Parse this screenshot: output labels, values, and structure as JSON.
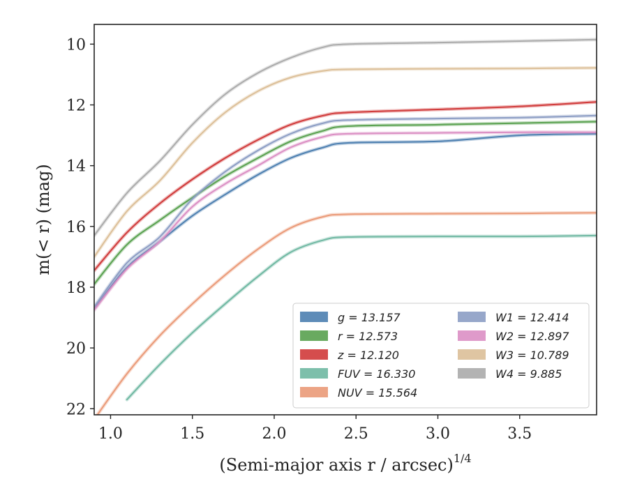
{
  "chart_data": {
    "type": "line",
    "xlabel": "(Semi-major axis r / arcsec)",
    "xlabel_sup": "1/4",
    "ylabel": "m(< r) (mag)",
    "xlim": [
      0.9,
      3.97
    ],
    "ylim": [
      22.2,
      9.35
    ],
    "y_inverted": true,
    "x_ticks": [
      1.0,
      1.5,
      2.0,
      2.5,
      3.0,
      3.5
    ],
    "x_tick_labels": [
      "1.0",
      "1.5",
      "2.0",
      "2.5",
      "3.0",
      "3.5"
    ],
    "y_ticks": [
      10,
      12,
      14,
      16,
      18,
      20,
      22
    ],
    "y_tick_labels": [
      "10",
      "12",
      "14",
      "16",
      "18",
      "20",
      "22"
    ],
    "legend": {
      "placement": "lower-right",
      "columns": 2
    },
    "series": [
      {
        "name": "g = 13.157",
        "color": "#4c7fb0",
        "x": [
          0.9,
          1.1,
          1.3,
          1.5,
          1.7,
          1.9,
          2.1,
          2.3,
          2.45,
          3.0,
          3.5,
          3.97
        ],
        "y": [
          18.7,
          17.35,
          16.5,
          15.65,
          14.95,
          14.3,
          13.75,
          13.4,
          13.25,
          13.2,
          13.0,
          12.95
        ]
      },
      {
        "name": "r = 12.573",
        "color": "#59a14f",
        "x": [
          0.9,
          1.1,
          1.3,
          1.5,
          1.7,
          1.9,
          2.1,
          2.3,
          2.45,
          3.0,
          3.5,
          3.97
        ],
        "y": [
          17.9,
          16.6,
          15.8,
          15.05,
          14.35,
          13.75,
          13.2,
          12.85,
          12.7,
          12.65,
          12.6,
          12.55
        ]
      },
      {
        "name": "z = 12.120",
        "color": "#d03a3a",
        "x": [
          0.9,
          1.1,
          1.3,
          1.5,
          1.7,
          1.9,
          2.1,
          2.3,
          2.45,
          3.0,
          3.5,
          3.97
        ],
        "y": [
          17.45,
          16.2,
          15.25,
          14.45,
          13.75,
          13.15,
          12.65,
          12.35,
          12.25,
          12.15,
          12.05,
          11.9
        ]
      },
      {
        "name": "FUV = 16.330",
        "color": "#6fb8a2",
        "x": [
          1.1,
          1.3,
          1.5,
          1.7,
          1.9,
          2.1,
          2.3,
          2.45,
          3.0,
          3.5,
          3.97
        ],
        "y": [
          21.7,
          20.55,
          19.5,
          18.55,
          17.65,
          16.85,
          16.45,
          16.35,
          16.33,
          16.33,
          16.3
        ]
      },
      {
        "name": "NUV = 15.564",
        "color": "#ea9a78",
        "x": [
          0.9,
          1.1,
          1.3,
          1.5,
          1.7,
          1.9,
          2.1,
          2.3,
          2.45,
          3.0,
          3.5,
          3.97
        ],
        "y": [
          22.35,
          20.85,
          19.6,
          18.55,
          17.6,
          16.75,
          16.05,
          15.68,
          15.6,
          15.58,
          15.57,
          15.55
        ]
      },
      {
        "name": "W1 = 12.414",
        "color": "#8c9dc4",
        "x": [
          0.9,
          1.1,
          1.3,
          1.5,
          1.7,
          1.9,
          2.1,
          2.3,
          2.45,
          3.0,
          3.5,
          3.97
        ],
        "y": [
          18.65,
          17.2,
          16.35,
          15.1,
          14.2,
          13.5,
          12.95,
          12.6,
          12.5,
          12.45,
          12.42,
          12.35
        ]
      },
      {
        "name": "W2 = 12.897",
        "color": "#db8fc4",
        "x": [
          0.9,
          1.1,
          1.3,
          1.5,
          1.7,
          1.9,
          2.1,
          2.3,
          2.45,
          3.0,
          3.5,
          3.97
        ],
        "y": [
          18.75,
          17.4,
          16.5,
          15.35,
          14.6,
          14.0,
          13.4,
          13.05,
          12.95,
          12.92,
          12.9,
          12.9
        ]
      },
      {
        "name": "W3 = 10.789",
        "color": "#dcbf98",
        "x": [
          0.9,
          1.1,
          1.3,
          1.5,
          1.7,
          1.9,
          2.1,
          2.3,
          2.45,
          3.0,
          3.5,
          3.97
        ],
        "y": [
          17.0,
          15.5,
          14.5,
          13.25,
          12.25,
          11.55,
          11.1,
          10.88,
          10.83,
          10.81,
          10.8,
          10.78
        ]
      },
      {
        "name": "W4 = 9.885",
        "color": "#ababab",
        "x": [
          0.9,
          1.1,
          1.3,
          1.5,
          1.7,
          1.9,
          2.1,
          2.3,
          2.45,
          3.0,
          3.5,
          3.97
        ],
        "y": [
          16.3,
          14.9,
          13.85,
          12.65,
          11.65,
          10.95,
          10.45,
          10.1,
          10.0,
          9.95,
          9.9,
          9.85
        ]
      }
    ]
  }
}
